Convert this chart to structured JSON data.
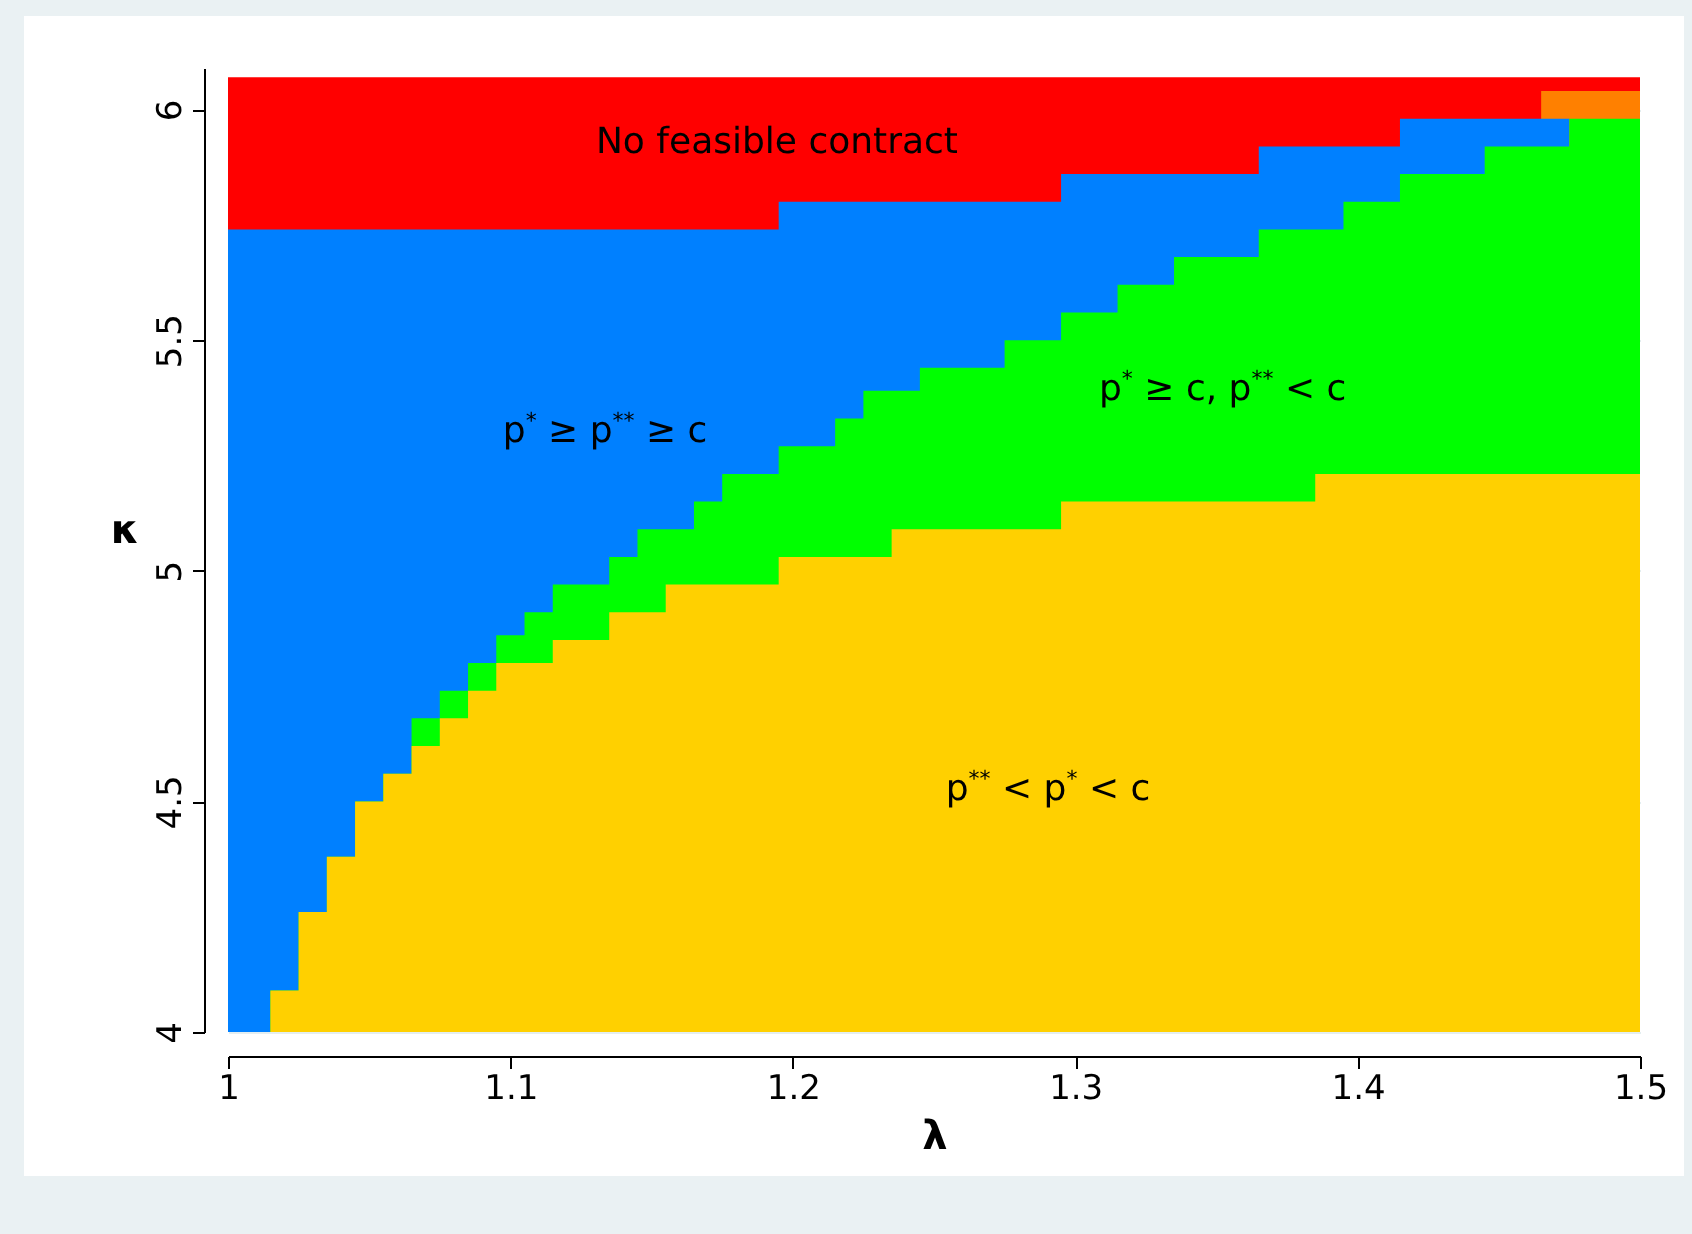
{
  "chart_data": {
    "type": "area",
    "xlabel": "λ",
    "ylabel": "κ",
    "x": [
      1,
      1.015,
      1.025,
      1.035,
      1.045,
      1.055,
      1.065,
      1.075,
      1.085,
      1.095,
      1.105,
      1.115,
      1.135,
      1.145,
      1.155,
      1.165,
      1.175,
      1.195,
      1.215,
      1.225,
      1.235,
      1.245,
      1.275,
      1.295,
      1.315,
      1.335,
      1.365,
      1.385,
      1.395,
      1.415,
      1.445,
      1.465,
      1.475,
      1.5
    ],
    "series": [
      {
        "name": "p$^{**}$ < p$^{*}$ < c",
        "color": "#ffd000",
        "values": [
          4.0,
          4.09,
          4.26,
          4.38,
          4.5,
          4.56,
          4.62,
          4.68,
          4.74,
          4.8,
          4.8,
          4.85,
          4.91,
          4.91,
          4.97,
          4.97,
          4.97,
          5.03,
          5.03,
          5.03,
          5.09,
          5.09,
          5.09,
          5.15,
          5.15,
          5.15,
          5.15,
          5.21,
          5.21,
          5.21,
          5.21,
          5.21,
          5.21,
          5.21
        ]
      },
      {
        "name": "p$^{*}$ ≥ c, p$^{**}$ < c",
        "color": "#00ff00",
        "values": [
          4.0,
          4.09,
          4.26,
          4.38,
          4.5,
          4.56,
          4.68,
          4.74,
          4.8,
          4.86,
          4.91,
          4.97,
          5.03,
          5.09,
          5.09,
          5.15,
          5.21,
          5.27,
          5.33,
          5.39,
          5.39,
          5.44,
          5.5,
          5.56,
          5.62,
          5.68,
          5.74,
          5.74,
          5.8,
          5.86,
          5.92,
          5.92,
          5.98,
          5.98
        ]
      },
      {
        "name": "p$^{*}$ ≥ p$^{**}$ ≥ c",
        "color": "#0080ff",
        "x": [
          1,
          1.015,
          1.025,
          1.035,
          1.045,
          1.055,
          1.065,
          1.075,
          1.085,
          1.095,
          1.105,
          1.115,
          1.135,
          1.145,
          1.155,
          1.165,
          1.175,
          1.195,
          1.215,
          1.225,
          1.235,
          1.245,
          1.275,
          1.295,
          1.315,
          1.335,
          1.365,
          1.385,
          1.395,
          1.415,
          1.445,
          1.465,
          1.475
        ],
        "values": [
          5.74,
          5.74,
          5.74,
          5.74,
          5.74,
          5.74,
          5.74,
          5.74,
          5.74,
          5.74,
          5.74,
          5.74,
          5.74,
          5.74,
          5.74,
          5.74,
          5.74,
          5.8,
          5.8,
          5.8,
          5.8,
          5.8,
          5.8,
          5.86,
          5.86,
          5.86,
          5.92,
          5.92,
          5.92,
          5.98,
          5.98,
          5.98,
          5.98
        ]
      },
      {
        "color": "#ff8000",
        "x": [
          1.465,
          1.475,
          1.5
        ],
        "values": [
          6.04,
          6.04,
          6.04
        ]
      },
      {
        "name": "No feasible contract",
        "color": "#ff0000",
        "values": [
          6.07,
          6.07,
          6.07,
          6.07,
          6.07,
          6.07,
          6.07,
          6.07,
          6.07,
          6.07,
          6.07,
          6.07,
          6.07,
          6.07,
          6.07,
          6.07,
          6.07,
          6.07,
          6.07,
          6.07,
          6.07,
          6.07,
          6.07,
          6.07,
          6.07,
          6.07,
          6.07,
          6.07,
          6.07,
          6.07,
          6.07,
          6.07,
          6.07,
          6.07
        ]
      }
    ],
    "xlim": [
      1,
      1.5
    ],
    "ylim": [
      4,
      6.09
    ],
    "xticks": [
      1,
      1.1,
      1.2,
      1.3,
      1.4,
      1.5
    ],
    "yticks": [
      4,
      4.5,
      5,
      5.5,
      6
    ],
    "grid": "y"
  }
}
